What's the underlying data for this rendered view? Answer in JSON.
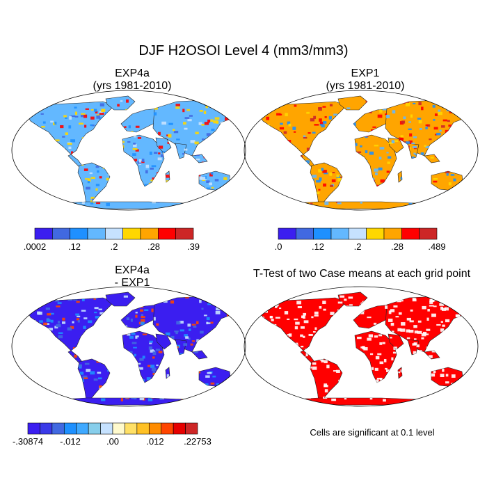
{
  "figure": {
    "title": "DJF H2OSOI Level 4 (mm3/mm3)"
  },
  "panels": [
    {
      "id": "exp4a",
      "title_line1": "EXP4a",
      "title_line2": "(yrs 1981-2010)"
    },
    {
      "id": "exp1",
      "title_line1": "EXP1",
      "title_line2": "(yrs 1981-2010)"
    },
    {
      "id": "diff",
      "title_line1": "EXP4a",
      "title_line2": "- EXP1"
    },
    {
      "id": "ttest",
      "title_line1": "T-Test of two Case means at each grid point",
      "title_line2": ""
    }
  ],
  "colorbars": [
    {
      "id": "exp4a",
      "colors": [
        "#3b1ef0",
        "#4169e1",
        "#1e90ff",
        "#63b8ff",
        "#c6e2ff",
        "#ffd700",
        "#ffa500",
        "#ff0000",
        "#cd2626"
      ],
      "ticks": [
        ".0002",
        ".12",
        ".2",
        ".28",
        ".39"
      ]
    },
    {
      "id": "exp1",
      "colors": [
        "#3b1ef0",
        "#4169e1",
        "#1e90ff",
        "#63b8ff",
        "#c6e2ff",
        "#ffd700",
        "#ffa500",
        "#ff0000",
        "#cd2626"
      ],
      "ticks": [
        ".0",
        ".12",
        ".2",
        ".28",
        ".489"
      ]
    },
    {
      "id": "diff",
      "colors": [
        "#3b1ef0",
        "#3a3ae8",
        "#4169e1",
        "#1e90ff",
        "#3fa9ff",
        "#87ceeb",
        "#c6e2ff",
        "#fffacd",
        "#ffe066",
        "#ffc125",
        "#ff8c00",
        "#ff4500",
        "#e60000",
        "#cd2626"
      ],
      "ticks": [
        "-.30874",
        "-.012",
        ".00",
        ".012",
        ".22753"
      ]
    }
  ],
  "ttest_note": "Cells are significant at 0.1 level",
  "map_colors": {
    "exp4a": {
      "base": "#63b8ff",
      "accents": [
        "#1e90ff",
        "#c6e2ff",
        "#ffd700",
        "#ff0000",
        "#4169e1"
      ]
    },
    "exp1": {
      "base": "#ffa500",
      "accents": [
        "#ff0000",
        "#ffd700",
        "#63b8ff",
        "#1e90ff",
        "#cd2626"
      ]
    },
    "diff": {
      "base": "#3b1ef0",
      "accents": [
        "#4169e1",
        "#1e90ff",
        "#ff4500",
        "#c6e2ff"
      ]
    },
    "ttest": {
      "base": "#ff0000",
      "accents": [
        "#ffffff"
      ]
    }
  }
}
